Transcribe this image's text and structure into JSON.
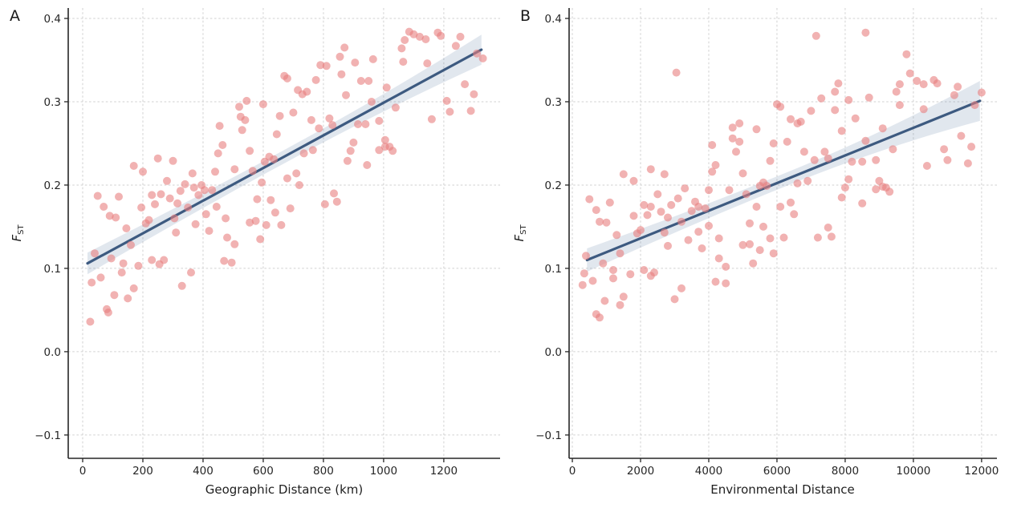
{
  "style": {
    "background": "#ffffff",
    "point_color": "#e87f7f",
    "point_opacity": 0.6,
    "point_radius": 5,
    "line_color": "#3d5a80",
    "line_width": 3.2,
    "band_color": "#5878a0",
    "band_opacity": 0.18,
    "grid_color": "#d2d2d2",
    "spine_color": "#262626",
    "tick_color": "#262626"
  },
  "chart_data": [
    {
      "type": "scatter",
      "panel_label": "A",
      "xlabel": "Geographic Distance (km)",
      "ylabel_main": "F",
      "ylabel_sub": "ST",
      "x_ticks": [
        0,
        200,
        400,
        600,
        800,
        1000,
        1200
      ],
      "x_tick_labels": [
        "0",
        "200",
        "400",
        "600",
        "800",
        "1000",
        "1200"
      ],
      "y_ticks": [
        0.4,
        0.3,
        0.2,
        0.1,
        0.0,
        -0.1
      ],
      "y_tick_labels": [
        "0.4",
        "0.3",
        "0.2",
        "0.1",
        "0.0",
        "−0.1"
      ],
      "xlim": [
        -48,
        1387
      ],
      "ylim": [
        -0.128,
        0.4125
      ],
      "grid": true,
      "legend": false,
      "regression_line": {
        "x_start": 16,
        "y_start": 0.106,
        "x_end": 1325,
        "y_end": 0.3625
      },
      "ci_band": {
        "halfwidth_left": 0.013,
        "halfwidth_mid": 0.008,
        "halfwidth_right": 0.018
      },
      "points": [
        [
          25,
          0.036
        ],
        [
          1310,
          0.358
        ],
        [
          640,
          0.167
        ],
        [
          210,
          0.154
        ],
        [
          455,
          0.271
        ],
        [
          890,
          0.241
        ],
        [
          330,
          0.079
        ],
        [
          760,
          0.278
        ],
        [
          1120,
          0.378
        ],
        [
          95,
          0.112
        ],
        [
          540,
          0.278
        ],
        [
          1005,
          0.254
        ],
        [
          375,
          0.153
        ],
        [
          680,
          0.328
        ],
        [
          150,
          0.064
        ],
        [
          820,
          0.28
        ],
        [
          260,
          0.189
        ],
        [
          985,
          0.242
        ],
        [
          430,
          0.194
        ],
        [
          590,
          0.135
        ],
        [
          1180,
          0.383
        ],
        [
          50,
          0.187
        ],
        [
          710,
          0.214
        ],
        [
          305,
          0.16
        ],
        [
          860,
          0.333
        ],
        [
          495,
          0.107
        ],
        [
          1240,
          0.367
        ],
        [
          170,
          0.223
        ],
        [
          625,
          0.182
        ],
        [
          945,
          0.224
        ],
        [
          230,
          0.188
        ],
        [
          785,
          0.268
        ],
        [
          410,
          0.165
        ],
        [
          1060,
          0.364
        ],
        [
          85,
          0.047
        ],
        [
          555,
          0.241
        ],
        [
          670,
          0.331
        ],
        [
          1300,
          0.309
        ],
        [
          350,
          0.173
        ],
        [
          905,
          0.347
        ],
        [
          130,
          0.095
        ],
        [
          470,
          0.109
        ],
        [
          1145,
          0.346
        ],
        [
          280,
          0.205
        ],
        [
          735,
          0.238
        ],
        [
          600,
          0.297
        ],
        [
          1020,
          0.246
        ],
        [
          195,
          0.173
        ],
        [
          835,
          0.19
        ],
        [
          385,
          0.188
        ],
        [
          965,
          0.351
        ],
        [
          60,
          0.089
        ],
        [
          520,
          0.294
        ],
        [
          1210,
          0.301
        ],
        [
          315,
          0.178
        ],
        [
          690,
          0.172
        ],
        [
          110,
          0.161
        ],
        [
          775,
          0.326
        ],
        [
          445,
          0.174
        ],
        [
          880,
          0.229
        ],
        [
          240,
          0.177
        ],
        [
          1085,
          0.384
        ],
        [
          575,
          0.157
        ],
        [
          40,
          0.118
        ],
        [
          655,
          0.283
        ],
        [
          1270,
          0.321
        ],
        [
          360,
          0.095
        ],
        [
          925,
          0.325
        ],
        [
          505,
          0.219
        ],
        [
          160,
          0.128
        ],
        [
          745,
          0.312
        ],
        [
          1160,
          0.279
        ],
        [
          290,
          0.184
        ],
        [
          810,
          0.343
        ],
        [
          420,
          0.145
        ],
        [
          1040,
          0.293
        ],
        [
          70,
          0.174
        ],
        [
          610,
          0.152
        ],
        [
          220,
          0.158
        ],
        [
          950,
          0.325
        ],
        [
          480,
          0.137
        ],
        [
          1330,
          0.352
        ],
        [
          135,
          0.106
        ],
        [
          565,
          0.217
        ],
        [
          700,
          0.287
        ],
        [
          845,
          0.18
        ],
        [
          340,
          0.201
        ],
        [
          1100,
          0.381
        ],
        [
          185,
          0.103
        ],
        [
          765,
          0.242
        ],
        [
          530,
          0.266
        ],
        [
          1005,
          0.246
        ],
        [
          395,
          0.2
        ],
        [
          250,
          0.232
        ],
        [
          900,
          0.251
        ],
        [
          620,
          0.234
        ],
        [
          80,
          0.051
        ],
        [
          1190,
          0.379
        ],
        [
          440,
          0.216
        ],
        [
          720,
          0.2
        ],
        [
          300,
          0.229
        ],
        [
          985,
          0.277
        ],
        [
          545,
          0.301
        ],
        [
          105,
          0.068
        ],
        [
          830,
          0.272
        ],
        [
          365,
          0.214
        ],
        [
          660,
          0.152
        ],
        [
          1255,
          0.378
        ],
        [
          200,
          0.216
        ],
        [
          580,
          0.183
        ],
        [
          915,
          0.273
        ],
        [
          465,
          0.248
        ],
        [
          1030,
          0.241
        ],
        [
          145,
          0.148
        ],
        [
          790,
          0.344
        ],
        [
          270,
          0.11
        ],
        [
          635,
          0.231
        ],
        [
          1070,
          0.374
        ],
        [
          30,
          0.083
        ],
        [
          505,
          0.129
        ],
        [
          875,
          0.308
        ],
        [
          405,
          0.194
        ],
        [
          1140,
          0.375
        ],
        [
          230,
          0.11
        ],
        [
          715,
          0.314
        ],
        [
          595,
          0.203
        ],
        [
          1220,
          0.288
        ],
        [
          325,
          0.193
        ],
        [
          855,
          0.354
        ],
        [
          170,
          0.076
        ],
        [
          960,
          0.3
        ],
        [
          450,
          0.238
        ],
        [
          680,
          0.208
        ],
        [
          120,
          0.186
        ],
        [
          805,
          0.177
        ],
        [
          370,
          0.197
        ],
        [
          1065,
          0.348
        ],
        [
          255,
          0.105
        ],
        [
          525,
          0.282
        ],
        [
          940,
          0.273
        ],
        [
          605,
          0.228
        ],
        [
          1290,
          0.289
        ],
        [
          90,
          0.163
        ],
        [
          730,
          0.309
        ],
        [
          475,
          0.16
        ],
        [
          870,
          0.365
        ],
        [
          310,
          0.143
        ],
        [
          1010,
          0.317
        ],
        [
          555,
          0.155
        ],
        [
          645,
          0.261
        ]
      ]
    },
    {
      "type": "scatter",
      "panel_label": "B",
      "xlabel": "Environmental Distance",
      "ylabel_main": "F",
      "ylabel_sub": "ST",
      "x_ticks": [
        0,
        2000,
        4000,
        6000,
        8000,
        10000,
        12000
      ],
      "x_tick_labels": [
        "0",
        "2000",
        "4000",
        "6000",
        "8000",
        "10000",
        "12000"
      ],
      "y_ticks": [
        0.4,
        0.3,
        0.2,
        0.1,
        0.0,
        -0.1
      ],
      "y_tick_labels": [
        "0.4",
        "0.3",
        "0.2",
        "0.1",
        "0.0",
        "−0.1"
      ],
      "xlim": [
        -95,
        12450
      ],
      "ylim": [
        -0.128,
        0.4125
      ],
      "grid": true,
      "legend": false,
      "regression_line": {
        "x_start": 430,
        "y_start": 0.11,
        "x_end": 11950,
        "y_end": 0.301
      },
      "ci_band": {
        "halfwidth_left": 0.014,
        "halfwidth_mid": 0.008,
        "halfwidth_right": 0.024
      },
      "points": [
        [
          350,
          0.094
        ],
        [
          11800,
          0.296
        ],
        [
          5800,
          0.136
        ],
        [
          1900,
          0.142
        ],
        [
          4100,
          0.248
        ],
        [
          8000,
          0.197
        ],
        [
          3000,
          0.063
        ],
        [
          6800,
          0.24
        ],
        [
          10100,
          0.325
        ],
        [
          900,
          0.106
        ],
        [
          4900,
          0.252
        ],
        [
          9000,
          0.205
        ],
        [
          3400,
          0.134
        ],
        [
          6100,
          0.294
        ],
        [
          1400,
          0.056
        ],
        [
          7400,
          0.24
        ],
        [
          2300,
          0.174
        ],
        [
          8900,
          0.195
        ],
        [
          3900,
          0.172
        ],
        [
          5300,
          0.106
        ],
        [
          10600,
          0.326
        ],
        [
          500,
          0.183
        ],
        [
          6400,
          0.179
        ],
        [
          2700,
          0.143
        ],
        [
          7700,
          0.29
        ],
        [
          4500,
          0.082
        ],
        [
          11200,
          0.308
        ],
        [
          1500,
          0.213
        ],
        [
          5600,
          0.15
        ],
        [
          8500,
          0.178
        ],
        [
          2100,
          0.176
        ],
        [
          7100,
          0.23
        ],
        [
          3700,
          0.144
        ],
        [
          9500,
          0.312
        ],
        [
          800,
          0.041
        ],
        [
          5000,
          0.214
        ],
        [
          6000,
          0.297
        ],
        [
          11700,
          0.246
        ],
        [
          3200,
          0.156
        ],
        [
          8100,
          0.302
        ],
        [
          1200,
          0.088
        ],
        [
          4200,
          0.084
        ],
        [
          10300,
          0.291
        ],
        [
          2500,
          0.189
        ],
        [
          6600,
          0.202
        ],
        [
          5400,
          0.267
        ],
        [
          9200,
          0.197
        ],
        [
          1800,
          0.163
        ],
        [
          7500,
          0.149
        ],
        [
          3500,
          0.169
        ],
        [
          8700,
          0.305
        ],
        [
          600,
          0.085
        ],
        [
          4700,
          0.269
        ],
        [
          10900,
          0.243
        ],
        [
          2800,
          0.161
        ],
        [
          6200,
          0.137
        ],
        [
          1000,
          0.155
        ],
        [
          7000,
          0.289
        ],
        [
          4000,
          0.151
        ],
        [
          7900,
          0.185
        ],
        [
          2200,
          0.164
        ],
        [
          9800,
          0.357
        ],
        [
          5200,
          0.129
        ],
        [
          400,
          0.115
        ],
        [
          5900,
          0.25
        ],
        [
          11400,
          0.259
        ],
        [
          3200,
          0.076
        ],
        [
          8300,
          0.28
        ],
        [
          4600,
          0.194
        ],
        [
          1400,
          0.118
        ],
        [
          6700,
          0.276
        ],
        [
          10400,
          0.223
        ],
        [
          2600,
          0.168
        ],
        [
          7300,
          0.304
        ],
        [
          3800,
          0.124
        ],
        [
          9400,
          0.243
        ],
        [
          700,
          0.17
        ],
        [
          5500,
          0.122
        ],
        [
          2000,
          0.146
        ],
        [
          8600,
          0.383
        ],
        [
          4300,
          0.112
        ],
        [
          12000,
          0.311
        ],
        [
          1200,
          0.098
        ],
        [
          5100,
          0.189
        ],
        [
          6300,
          0.252
        ],
        [
          7600,
          0.138
        ],
        [
          3100,
          0.184
        ],
        [
          9900,
          0.334
        ],
        [
          1700,
          0.093
        ],
        [
          6900,
          0.205
        ],
        [
          4800,
          0.24
        ],
        [
          9100,
          0.198
        ],
        [
          3600,
          0.18
        ],
        [
          2300,
          0.219
        ],
        [
          8100,
          0.207
        ],
        [
          5600,
          0.203
        ],
        [
          700,
          0.045
        ],
        [
          10700,
          0.322
        ],
        [
          4000,
          0.194
        ],
        [
          6500,
          0.165
        ],
        [
          2700,
          0.213
        ],
        [
          8900,
          0.23
        ],
        [
          4900,
          0.274
        ],
        [
          950,
          0.061
        ],
        [
          7500,
          0.232
        ],
        [
          3300,
          0.196
        ],
        [
          5900,
          0.118
        ],
        [
          11300,
          0.318
        ],
        [
          1800,
          0.205
        ],
        [
          5200,
          0.154
        ],
        [
          8200,
          0.228
        ],
        [
          4200,
          0.224
        ],
        [
          9300,
          0.192
        ],
        [
          1300,
          0.14
        ],
        [
          7150,
          0.379
        ],
        [
          2400,
          0.095
        ],
        [
          5700,
          0.199
        ],
        [
          9600,
          0.321
        ],
        [
          300,
          0.08
        ],
        [
          4500,
          0.102
        ],
        [
          7900,
          0.265
        ],
        [
          3700,
          0.174
        ],
        [
          10300,
          0.321
        ],
        [
          2100,
          0.098
        ],
        [
          6400,
          0.279
        ],
        [
          5400,
          0.174
        ],
        [
          11000,
          0.23
        ],
        [
          2900,
          0.176
        ],
        [
          7700,
          0.312
        ],
        [
          1500,
          0.066
        ],
        [
          8600,
          0.253
        ],
        [
          4100,
          0.216
        ],
        [
          6100,
          0.174
        ],
        [
          1100,
          0.179
        ],
        [
          7200,
          0.137
        ],
        [
          3050,
          0.335
        ],
        [
          9600,
          0.296
        ],
        [
          2300,
          0.091
        ],
        [
          4700,
          0.256
        ],
        [
          8500,
          0.228
        ],
        [
          5500,
          0.199
        ],
        [
          11600,
          0.226
        ],
        [
          800,
          0.156
        ],
        [
          6600,
          0.274
        ],
        [
          4300,
          0.136
        ],
        [
          7800,
          0.322
        ],
        [
          2800,
          0.127
        ],
        [
          9100,
          0.268
        ],
        [
          5000,
          0.128
        ],
        [
          5800,
          0.229
        ]
      ]
    }
  ]
}
